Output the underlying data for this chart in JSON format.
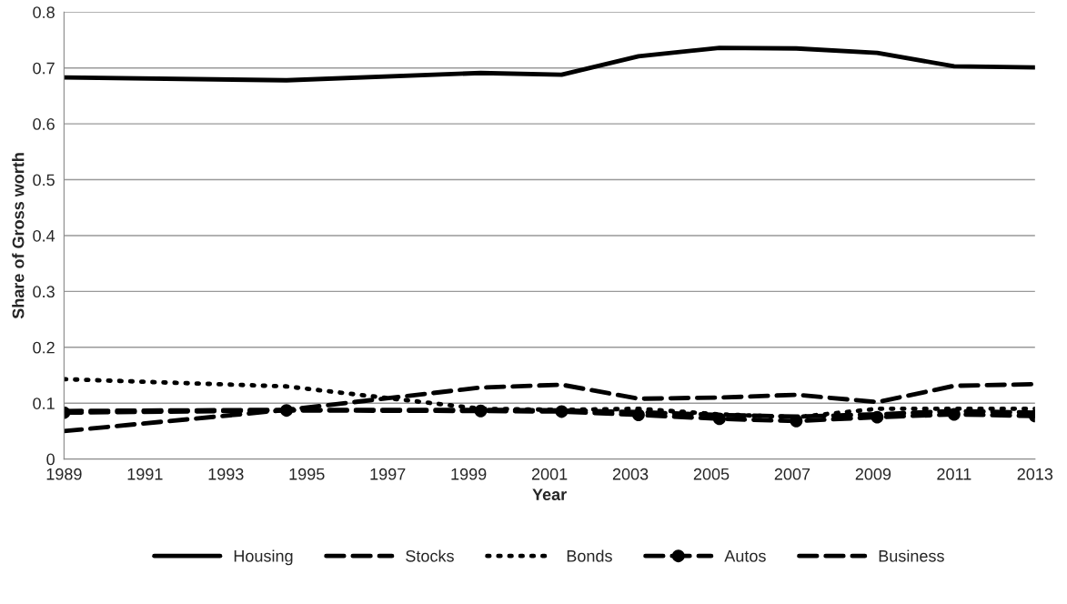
{
  "chart_data": {
    "type": "line",
    "xlabel": "Year",
    "ylabel": "Share of Gross worth",
    "x": [
      1989,
      1994.5,
      1999.3,
      2001.3,
      2003.2,
      2005.2,
      2007.1,
      2009.1,
      2011,
      2013
    ],
    "series": [
      {
        "name": "Housing",
        "color": "#000000",
        "line_style": "solid",
        "marker": "none",
        "values": [
          0.683,
          0.678,
          0.691,
          0.688,
          0.721,
          0.736,
          0.735,
          0.727,
          0.703,
          0.701
        ]
      },
      {
        "name": "Stocks",
        "color": "#000000",
        "line_style": "dashed",
        "marker": "none",
        "values": [
          0.05,
          0.088,
          0.128,
          0.133,
          0.108,
          0.11,
          0.115,
          0.102,
          0.131,
          0.134
        ]
      },
      {
        "name": "Bonds",
        "color": "#000000",
        "line_style": "dotted",
        "marker": "none",
        "values": [
          0.143,
          0.13,
          0.09,
          0.088,
          0.09,
          0.08,
          0.075,
          0.09,
          0.09,
          0.09
        ]
      },
      {
        "name": "Autos",
        "color": "#000000",
        "line_style": "dashed",
        "marker": "circle",
        "values": [
          0.083,
          0.087,
          0.086,
          0.085,
          0.079,
          0.072,
          0.068,
          0.075,
          0.08,
          0.077
        ]
      },
      {
        "name": "Business",
        "color": "#000000",
        "line_style": "dashed",
        "marker": "none",
        "values": [
          0.086,
          0.088,
          0.088,
          0.087,
          0.084,
          0.079,
          0.076,
          0.08,
          0.086,
          0.083
        ]
      }
    ],
    "xlim": [
      1989,
      2013
    ],
    "xticks": [
      1989,
      1991,
      1993,
      1995,
      1997,
      1999,
      2001,
      2003,
      2005,
      2007,
      2009,
      2011,
      2013
    ],
    "ylim": [
      0,
      0.8
    ],
    "yticks": [
      0,
      {
        "value": 0.1,
        "label": "0.1"
      },
      {
        "value": 0.2,
        "label": "0.2"
      },
      {
        "value": 0.3,
        "label": "0.3"
      },
      {
        "value": 0.4,
        "label": "0.4"
      },
      {
        "value": 0.5,
        "label": "0.5"
      },
      {
        "value": 0.6,
        "label": "0.6"
      },
      {
        "value": 0.7,
        "label": "0.7"
      },
      {
        "value": 0.8,
        "label": "0.8"
      }
    ],
    "grid": "y",
    "legend": "bottom"
  }
}
